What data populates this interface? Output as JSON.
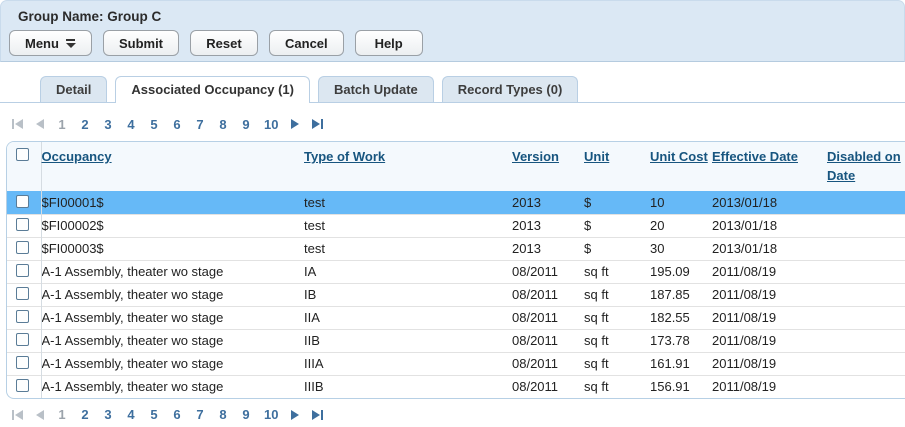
{
  "header": {
    "title": "Group Name: Group C",
    "buttons": [
      {
        "label": "Menu"
      },
      {
        "label": "Submit"
      },
      {
        "label": "Reset"
      },
      {
        "label": "Cancel"
      },
      {
        "label": "Help"
      }
    ]
  },
  "tabs": [
    {
      "label": "Detail",
      "active": false
    },
    {
      "label": "Associated Occupancy (1)",
      "active": true
    },
    {
      "label": "Batch Update",
      "active": false
    },
    {
      "label": "Record Types (0)",
      "active": false
    }
  ],
  "pagination": {
    "pages": [
      {
        "label": "1",
        "current": true
      },
      {
        "label": "2"
      },
      {
        "label": "3"
      },
      {
        "label": "4"
      },
      {
        "label": "5"
      },
      {
        "label": "6"
      },
      {
        "label": "7"
      },
      {
        "label": "8"
      },
      {
        "label": "9"
      },
      {
        "label": "10"
      }
    ]
  },
  "table": {
    "columns": [
      "Occupancy",
      "Type of Work",
      "Version",
      "Unit",
      "Unit Cost",
      "Effective Date",
      "Disabled on Date"
    ],
    "rows": [
      {
        "selected": true,
        "occupancy": "$FI00001$",
        "type_of_work": "test",
        "version": "2013",
        "unit": "$",
        "unit_cost": "10",
        "effective_date": "2013/01/18",
        "disabled_on_date": ""
      },
      {
        "selected": false,
        "occupancy": "$FI00002$",
        "type_of_work": "test",
        "version": "2013",
        "unit": "$",
        "unit_cost": "20",
        "effective_date": "2013/01/18",
        "disabled_on_date": ""
      },
      {
        "selected": false,
        "occupancy": "$FI00003$",
        "type_of_work": "test",
        "version": "2013",
        "unit": "$",
        "unit_cost": "30",
        "effective_date": "2013/01/18",
        "disabled_on_date": ""
      },
      {
        "selected": false,
        "occupancy": "A-1 Assembly, theater wo stage",
        "type_of_work": "IA",
        "version": "08/2011",
        "unit": "sq ft",
        "unit_cost": "195.09",
        "effective_date": "2011/08/19",
        "disabled_on_date": ""
      },
      {
        "selected": false,
        "occupancy": "A-1 Assembly, theater wo stage",
        "type_of_work": "IB",
        "version": "08/2011",
        "unit": "sq ft",
        "unit_cost": "187.85",
        "effective_date": "2011/08/19",
        "disabled_on_date": ""
      },
      {
        "selected": false,
        "occupancy": "A-1 Assembly, theater wo stage",
        "type_of_work": "IIA",
        "version": "08/2011",
        "unit": "sq ft",
        "unit_cost": "182.55",
        "effective_date": "2011/08/19",
        "disabled_on_date": ""
      },
      {
        "selected": false,
        "occupancy": "A-1 Assembly, theater wo stage",
        "type_of_work": "IIB",
        "version": "08/2011",
        "unit": "sq ft",
        "unit_cost": "173.78",
        "effective_date": "2011/08/19",
        "disabled_on_date": ""
      },
      {
        "selected": false,
        "occupancy": "A-1 Assembly, theater wo stage",
        "type_of_work": "IIIA",
        "version": "08/2011",
        "unit": "sq ft",
        "unit_cost": "161.91",
        "effective_date": "2011/08/19",
        "disabled_on_date": ""
      },
      {
        "selected": false,
        "occupancy": "A-1 Assembly, theater wo stage",
        "type_of_work": "IIIB",
        "version": "08/2011",
        "unit": "sq ft",
        "unit_cost": "156.91",
        "effective_date": "2011/08/19",
        "disabled_on_date": ""
      }
    ]
  },
  "colors": {
    "panel_bg": "#dbe8f4",
    "selected_row": "#66b9f7",
    "header_link": "#17557f",
    "pagination_link": "#3e6f9e",
    "tab_border": "#b9cfe4"
  }
}
